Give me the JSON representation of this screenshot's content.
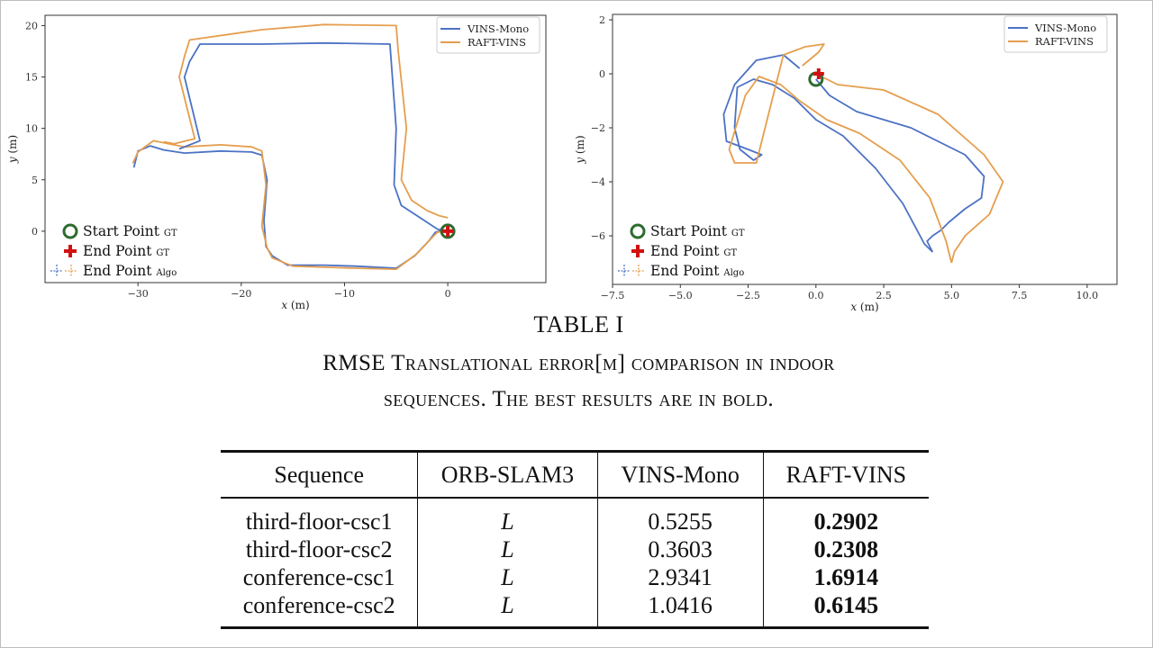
{
  "colors": {
    "vins_mono": "#4c72c4",
    "raft_vins": "#e59e4e",
    "start_marker": "#2e6b2e",
    "end_marker": "#d11111"
  },
  "chart_data": [
    {
      "type": "line",
      "xlabel_var": "x",
      "xlabel_unit": "(m)",
      "ylabel_var": "y",
      "ylabel_unit": "(m)",
      "xlim": [
        -39,
        9.5
      ],
      "ylim": [
        -5,
        21
      ],
      "xticks": [
        "−30",
        "−20",
        "−10",
        "0"
      ],
      "xtick_values": [
        -30,
        -20,
        -10,
        0
      ],
      "yticks": [
        "0",
        "5",
        "10",
        "15",
        "20"
      ],
      "ytick_values": [
        0,
        5,
        10,
        15,
        20
      ],
      "legend": {
        "placement": "top-right",
        "entries": [
          "VINS-Mono",
          "RAFT-VINS"
        ]
      },
      "marker_legend": {
        "placement": "bottom-left",
        "start": "Start Point",
        "start_sub": "GT",
        "end": "End Point",
        "end_sub": "GT",
        "algo": "End Point",
        "algo_sub": "Algo"
      },
      "start_point": [
        0,
        0
      ],
      "end_point": [
        0,
        0
      ],
      "series": [
        {
          "name": "VINS-Mono",
          "x": [
            -30.4,
            -30.0,
            -28.8,
            -27.5,
            -25.5,
            -22.0,
            -19.0,
            -18.0,
            -17.5,
            -17.8,
            -17.6,
            -17.0,
            -15.5,
            -12.0,
            -9.0,
            -5.0,
            -3.2,
            -1.8,
            -1.2,
            -0.4,
            0.0
          ],
          "y": [
            6.2,
            7.8,
            8.3,
            7.9,
            7.6,
            7.8,
            7.7,
            7.4,
            5.0,
            1.0,
            -1.5,
            -2.4,
            -3.3,
            -3.3,
            -3.4,
            -3.6,
            -2.4,
            -0.9,
            -0.1,
            0.1,
            0.0
          ]
        },
        {
          "name": "RAFT-VINS",
          "x": [
            -30.5,
            -30.0,
            -28.5,
            -25.5,
            -22.0,
            -19.0,
            -18.0,
            -17.6,
            -18.0,
            -17.5,
            -17.0,
            -15.0,
            -12.0,
            -9.0,
            -5.0,
            -3.0,
            -1.5,
            -1.0,
            0.0
          ],
          "y": [
            6.6,
            7.7,
            8.8,
            8.2,
            8.4,
            8.2,
            7.8,
            4.5,
            0.5,
            -1.6,
            -2.6,
            -3.4,
            -3.5,
            -3.6,
            -3.7,
            -2.2,
            -0.6,
            -0.1,
            0.0
          ]
        },
        {
          "name": "VINS-Mono",
          "x": [
            0.0,
            -1.0,
            -2.5,
            -4.5,
            -5.2,
            -5.0,
            -5.6,
            -12.0,
            -18.0,
            -24.0,
            -25.0,
            -25.5,
            -24.0,
            -26.0
          ],
          "y": [
            0.0,
            0.2,
            1.2,
            2.5,
            4.5,
            10.0,
            18.2,
            18.3,
            18.2,
            18.2,
            16.5,
            15.0,
            8.8,
            8.0
          ]
        },
        {
          "name": "RAFT-VINS",
          "x": [
            0.0,
            -0.8,
            -2.0,
            -3.5,
            -4.5,
            -4.0,
            -4.8,
            -5.0,
            -12.0,
            -18.0,
            -25.0,
            -25.5,
            -26.0,
            -24.5,
            -26.5,
            -27.5
          ],
          "y": [
            1.3,
            1.5,
            2.0,
            3.0,
            5.0,
            10.0,
            17.5,
            20.0,
            20.1,
            19.6,
            18.6,
            17.0,
            15.0,
            9.0,
            8.5,
            8.7
          ]
        }
      ]
    },
    {
      "type": "line",
      "xlabel_var": "x",
      "xlabel_unit": "(m)",
      "ylabel_var": "y",
      "ylabel_unit": "(m)",
      "xlim": [
        -7.5,
        11.1
      ],
      "ylim": [
        -7.8,
        2.2
      ],
      "xticks": [
        "−7.5",
        "−5.0",
        "−2.5",
        "0.0",
        "2.5",
        "5.0",
        "7.5",
        "10.0"
      ],
      "xtick_values": [
        -7.5,
        -5.0,
        -2.5,
        0.0,
        2.5,
        5.0,
        7.5,
        10.0
      ],
      "yticks": [
        "2",
        "0",
        "−2",
        "−4",
        "−6"
      ],
      "ytick_values": [
        2,
        0,
        -2,
        -4,
        -6
      ],
      "legend": {
        "placement": "top-right",
        "entries": [
          "VINS-Mono",
          "RAFT-VINS"
        ]
      },
      "marker_legend": {
        "placement": "bottom-left",
        "start": "Start Point",
        "start_sub": "GT",
        "end": "End Point",
        "end_sub": "GT",
        "algo": "End Point",
        "algo_sub": "Algo"
      },
      "start_point": [
        0,
        -0.2
      ],
      "end_point": [
        0.1,
        0.0
      ],
      "series": [
        {
          "name": "VINS-Mono",
          "x": [
            0.0,
            0.5,
            1.5,
            3.5,
            5.5,
            6.2,
            6.1,
            5.5,
            4.9,
            4.6,
            4.3,
            4.1,
            4.3
          ],
          "y": [
            -0.2,
            -0.8,
            -1.4,
            -2.0,
            -3.0,
            -3.8,
            -4.6,
            -5.0,
            -5.5,
            -5.8,
            -6.0,
            -6.2,
            -6.6
          ]
        },
        {
          "name": "RAFT-VINS",
          "x": [
            0.0,
            0.8,
            2.5,
            4.5,
            6.2,
            6.9,
            6.4,
            5.5,
            5.1,
            5.0
          ],
          "y": [
            0.0,
            -0.4,
            -0.6,
            -1.5,
            -3.0,
            -4.0,
            -5.2,
            -6.0,
            -6.6,
            -7.0
          ]
        },
        {
          "name": "VINS-Mono",
          "x": [
            4.3,
            4.0,
            3.2,
            2.2,
            1.0,
            0.0,
            -0.8,
            -1.6,
            -2.3,
            -2.9,
            -3.0,
            -2.8,
            -2.3,
            -2.0,
            -2.5,
            -3.3,
            -3.4,
            -3.0,
            -2.2,
            -1.2,
            -0.6
          ],
          "y": [
            -6.6,
            -6.3,
            -4.8,
            -3.5,
            -2.3,
            -1.7,
            -0.9,
            -0.4,
            -0.2,
            -0.5,
            -2.0,
            -2.8,
            -3.2,
            -3.0,
            -2.8,
            -2.5,
            -1.5,
            -0.4,
            0.5,
            0.7,
            0.2
          ]
        },
        {
          "name": "RAFT-VINS",
          "x": [
            5.0,
            4.8,
            4.2,
            3.1,
            1.6,
            0.4,
            -0.6,
            -1.3,
            -2.1,
            -2.6,
            -3.2,
            -3.0,
            -2.2,
            -1.2,
            -0.4,
            0.3,
            0.1,
            -0.5
          ],
          "y": [
            -7.0,
            -6.2,
            -4.6,
            -3.2,
            -2.2,
            -1.7,
            -1.0,
            -0.4,
            -0.1,
            -0.8,
            -2.8,
            -3.3,
            -3.3,
            0.7,
            1.0,
            1.1,
            0.8,
            0.3
          ]
        }
      ]
    }
  ],
  "table": {
    "title": "TABLE I",
    "caption_line1_first": "RMSE T",
    "caption_line1_rest": "ranslational error[m] comparison in indoor",
    "caption_line2_first": "sequences. T",
    "caption_line2_rest": "he best results are in bold.",
    "headers": [
      "Sequence",
      "ORB-SLAM3",
      "VINS-Mono",
      "RAFT-VINS"
    ],
    "rows": [
      [
        "third-floor-csc1",
        "L",
        "0.5255",
        "0.2902"
      ],
      [
        "third-floor-csc2",
        "L",
        "0.3603",
        "0.2308"
      ],
      [
        "conference-csc1",
        "L",
        "2.9341",
        "1.6914"
      ],
      [
        "conference-csc2",
        "L",
        "1.0416",
        "0.6145"
      ]
    ]
  }
}
